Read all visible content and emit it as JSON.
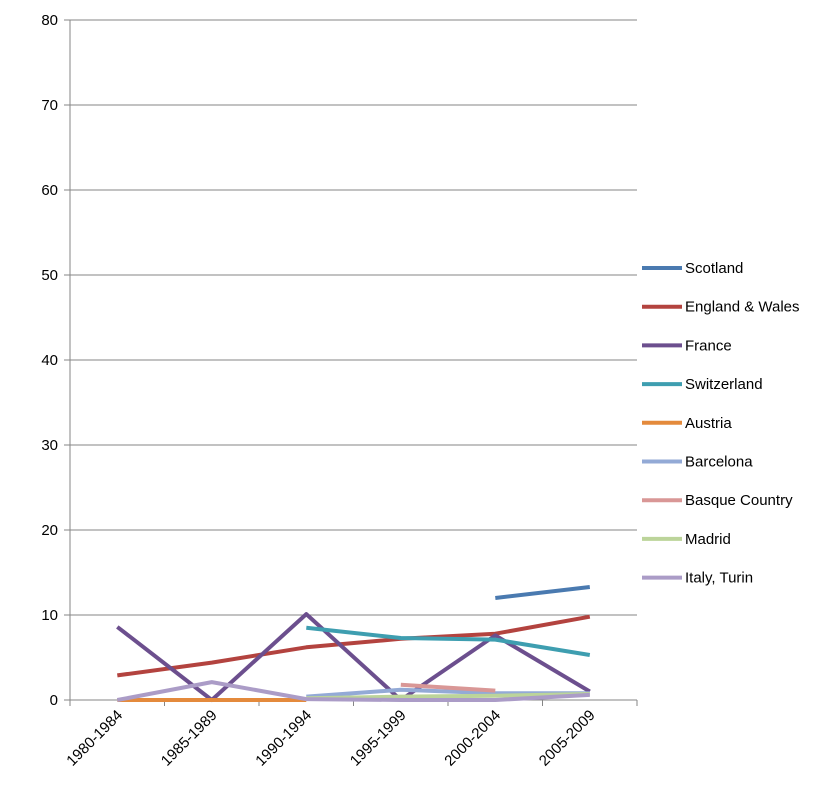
{
  "chart_data": {
    "type": "line",
    "title": "",
    "xlabel": "",
    "ylabel": "",
    "categories": [
      "1980-1984",
      "1985-1989",
      "1990-1994",
      "1995-1999",
      "2000-2004",
      "2005-2009"
    ],
    "ylim": [
      0,
      80
    ],
    "yticks": [
      0,
      10,
      20,
      30,
      40,
      50,
      60,
      70,
      80
    ],
    "grid": true,
    "legend_position": "right",
    "series": [
      {
        "name": "Scotland",
        "color": "#4a7ab0",
        "values": [
          null,
          null,
          null,
          null,
          12.0,
          13.3
        ]
      },
      {
        "name": "England & Wales",
        "color": "#b3433f",
        "values": [
          2.9,
          4.4,
          6.2,
          7.2,
          7.8,
          9.8
        ]
      },
      {
        "name": "France",
        "color": "#6c4f8e",
        "values": [
          8.6,
          0.0,
          10.1,
          0.0,
          7.6,
          1.0
        ]
      },
      {
        "name": "Switzerland",
        "color": "#3e9eb0",
        "values": [
          null,
          null,
          8.5,
          7.3,
          7.1,
          5.3
        ]
      },
      {
        "name": "Austria",
        "color": "#e48a3c",
        "values": [
          0.0,
          0.0,
          0.0,
          null,
          null,
          null
        ]
      },
      {
        "name": "Barcelona",
        "color": "#93aad6",
        "values": [
          null,
          null,
          0.4,
          1.2,
          0.8,
          0.8
        ]
      },
      {
        "name": "Basque Country",
        "color": "#d99796",
        "values": [
          null,
          null,
          null,
          1.8,
          1.1,
          null
        ]
      },
      {
        "name": "Madrid",
        "color": "#bcd49a",
        "values": [
          null,
          null,
          0.2,
          0.4,
          0.5,
          0.7
        ]
      },
      {
        "name": "Italy, Turin",
        "color": "#ab9cc7",
        "values": [
          0.0,
          2.1,
          0.1,
          0.0,
          0.0,
          0.6
        ]
      }
    ]
  }
}
